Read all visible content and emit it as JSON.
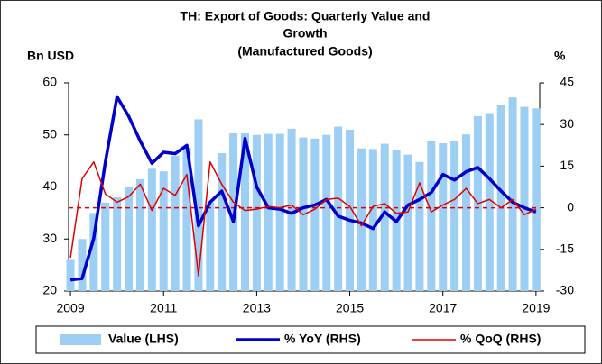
{
  "chart_data": {
    "type": "bar_line_dual",
    "title": [
      "TH: Export of Goods: Quarterly Value and",
      "Growth",
      "(Manufactured Goods)"
    ],
    "y_label": "Bn USD",
    "y2_label": "%",
    "x": [
      2009,
      2009.25,
      2009.5,
      2009.75,
      2010,
      2010.25,
      2010.5,
      2010.75,
      2011,
      2011.25,
      2011.5,
      2011.75,
      2012,
      2012.25,
      2012.5,
      2012.75,
      2013,
      2013.25,
      2013.5,
      2013.75,
      2014,
      2014.25,
      2014.5,
      2014.75,
      2015,
      2015.25,
      2015.5,
      2015.75,
      2016,
      2016.25,
      2016.5,
      2016.75,
      2017,
      2017.25,
      2017.5,
      2017.75,
      2018,
      2018.25,
      2018.5,
      2018.75,
      2019
    ],
    "xlim": [
      2008.96,
      2019.08
    ],
    "xticks": [
      2009,
      2011,
      2013,
      2015,
      2017,
      2019
    ],
    "ylim": [
      20,
      60
    ],
    "yticks": [
      20,
      30,
      40,
      50,
      60
    ],
    "y2lim": [
      -30,
      45
    ],
    "y2ticks": [
      -30,
      -15,
      0,
      15,
      30,
      45
    ],
    "reference_line": {
      "axis": "y2",
      "value": 0,
      "color": "#e00000"
    },
    "series": [
      {
        "name": "Value (LHS)",
        "kind": "bar",
        "axis": "y",
        "color": "#9dcff5",
        "values": [
          26,
          30,
          35,
          37,
          38,
          40,
          41.5,
          43.5,
          43,
          46,
          47.5,
          53,
          37,
          46.5,
          50.3,
          50.3,
          50,
          50.2,
          50.2,
          51.2,
          49.5,
          49.3,
          50,
          51.6,
          51,
          47.4,
          47.3,
          48.3,
          47,
          46.2,
          44.8,
          48.8,
          48.4,
          48.8,
          50.1,
          53.6,
          54.2,
          55.8,
          57.2,
          55.4,
          55.1
        ]
      },
      {
        "name": "% YoY (RHS)",
        "kind": "line",
        "axis": "y2",
        "color": "#0000cc",
        "width": 3.5,
        "values": [
          -26,
          -25.5,
          -11,
          16.5,
          40,
          33,
          24,
          16,
          20,
          19.5,
          22.5,
          -6.5,
          2,
          6,
          -5,
          25,
          7.5,
          0,
          -0.5,
          -2,
          0,
          1,
          3,
          -3,
          -4.5,
          -5.5,
          -7.5,
          -1.5,
          -5,
          1,
          3,
          5.5,
          12,
          10,
          13,
          14.5,
          10.5,
          6,
          2,
          0,
          -1.5
        ]
      },
      {
        "name": "% QoQ (RHS)",
        "kind": "line",
        "axis": "y2",
        "color": "#e00000",
        "width": 1.5,
        "values": [
          -18,
          10.5,
          16.5,
          5,
          2,
          4,
          8.5,
          -1,
          7,
          4.5,
          12,
          -24.5,
          16.5,
          8.5,
          2,
          -1,
          -0.5,
          0.5,
          0,
          1,
          -2.5,
          -0.5,
          3,
          3.5,
          0.5,
          -6.5,
          0.5,
          1.5,
          -2,
          -1.5,
          9,
          -1.5,
          1,
          3,
          7,
          1.5,
          3,
          0,
          3,
          -2.5,
          -0.5
        ]
      }
    ]
  }
}
